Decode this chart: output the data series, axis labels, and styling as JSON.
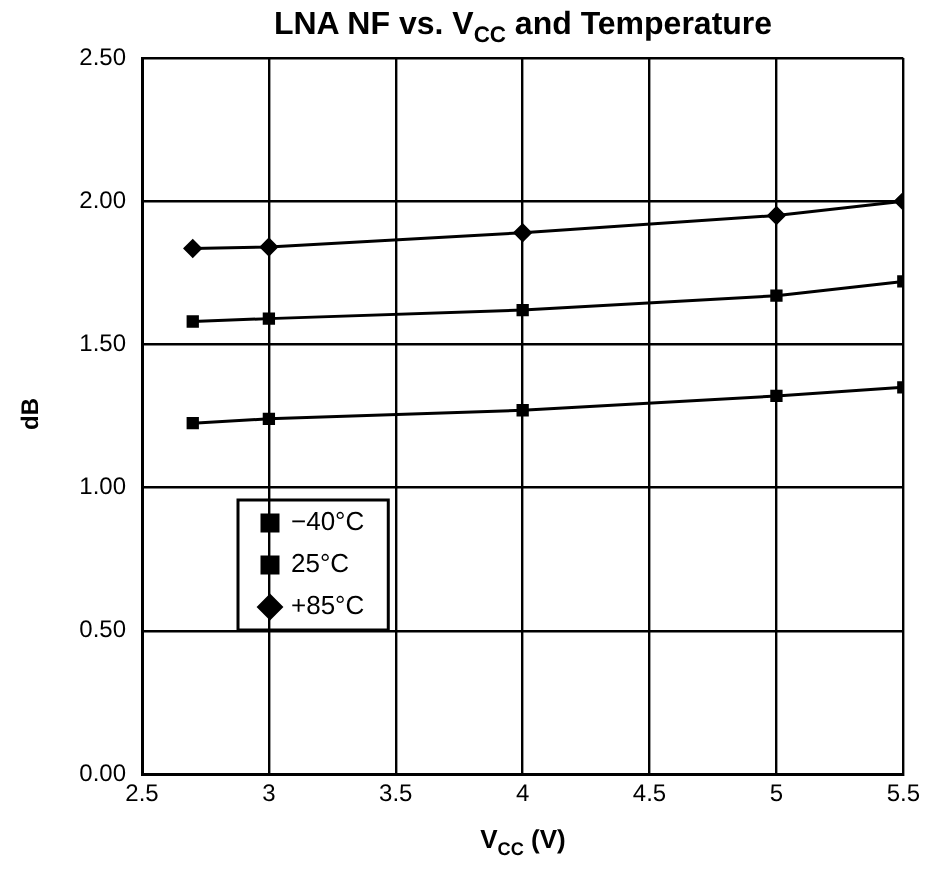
{
  "chart_data": {
    "type": "line",
    "title": "LNA NF vs. V$_{CC}$ and Temperature",
    "xlabel": "V$_{CC}$ (V)",
    "ylabel": "dB",
    "x": [
      2.7,
      3,
      4,
      5,
      5.5
    ],
    "series": [
      {
        "name": "−40°C",
        "color": "#000000",
        "marker": "square",
        "values": [
          1.225,
          1.24,
          1.27,
          1.32,
          1.35
        ]
      },
      {
        "name": "25°C",
        "color": "#000000",
        "marker": "square",
        "values": [
          1.58,
          1.59,
          1.62,
          1.67,
          1.72
        ]
      },
      {
        "name": "+85°C",
        "color": "#000000",
        "marker": "diamond",
        "values": [
          1.835,
          1.84,
          1.89,
          1.95,
          2.0
        ]
      }
    ],
    "xlim": [
      2.5,
      5.5
    ],
    "xticks": [
      {
        "value": 2.5,
        "label": "2.5"
      },
      {
        "value": 3,
        "label": "3"
      },
      {
        "value": 3.5,
        "label": "3.5"
      },
      {
        "value": 4,
        "label": "4"
      },
      {
        "value": 4.5,
        "label": "4.5"
      },
      {
        "value": 5,
        "label": "5"
      },
      {
        "value": 5.5,
        "label": "5.5"
      }
    ],
    "ylim": [
      0,
      2.5
    ],
    "yticks": [
      {
        "value": 0,
        "label": "0.00"
      },
      {
        "value": 0.5,
        "label": "0.50"
      },
      {
        "value": 1,
        "label": "1.00"
      },
      {
        "value": 1.5,
        "label": "1.50"
      },
      {
        "value": 2,
        "label": "2.00"
      },
      {
        "value": 2.5,
        "label": "2.50"
      }
    ],
    "grid": true,
    "legend": "bottom left",
    "line_style": "solid"
  }
}
